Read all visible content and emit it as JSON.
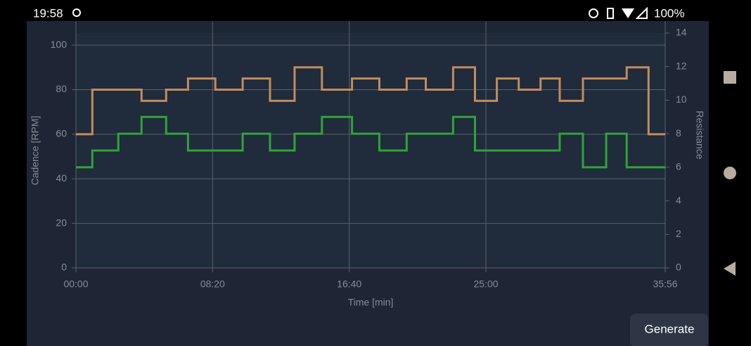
{
  "status_bar": {
    "time": "19:58",
    "battery": "100%"
  },
  "chart_data": {
    "type": "step",
    "x_label": "Time [min]",
    "y_label": "Cadence [RPM]",
    "y2_label": "Resistance",
    "xlim": [
      0,
      2156
    ],
    "xticks": [
      {
        "value": 0,
        "label": "00:00"
      },
      {
        "value": 500,
        "label": "08:20"
      },
      {
        "value": 1000,
        "label": "16:40"
      },
      {
        "value": 1500,
        "label": "25:00"
      },
      {
        "value": 2156,
        "label": "35:56"
      }
    ],
    "ylim": [
      0,
      105.4
    ],
    "yticks": [
      0,
      20,
      40,
      60,
      80,
      100
    ],
    "y2lim": [
      0,
      14
    ],
    "y2ticks": [
      0,
      2,
      4,
      6,
      8,
      10,
      12,
      14
    ],
    "grid": true,
    "series": [
      {
        "color": "#c28c5e",
        "axis": "y",
        "x": [
          0,
          60,
          240,
          330,
          410,
          510,
          610,
          710,
          800,
          900,
          1010,
          1110,
          1210,
          1280,
          1380,
          1460,
          1540,
          1620,
          1700,
          1770,
          1855,
          2015,
          2095,
          2156
        ],
        "values": [
          60,
          80,
          75,
          80,
          85,
          80,
          85,
          75,
          90,
          80,
          85,
          80,
          85,
          80,
          90,
          75,
          85,
          80,
          85,
          75,
          85,
          90,
          60,
          60
        ]
      },
      {
        "color": "#2fa33a",
        "axis": "y2",
        "x": [
          0,
          60,
          155,
          240,
          330,
          410,
          610,
          710,
          800,
          900,
          1010,
          1110,
          1210,
          1380,
          1460,
          1770,
          1855,
          1940,
          2015,
          2156
        ],
        "values": [
          6,
          7,
          8,
          9,
          8,
          7,
          8,
          7,
          8,
          9,
          8,
          7,
          8,
          9,
          7,
          8,
          6,
          8,
          6,
          6
        ]
      }
    ]
  },
  "button": {
    "label": "Generate"
  }
}
